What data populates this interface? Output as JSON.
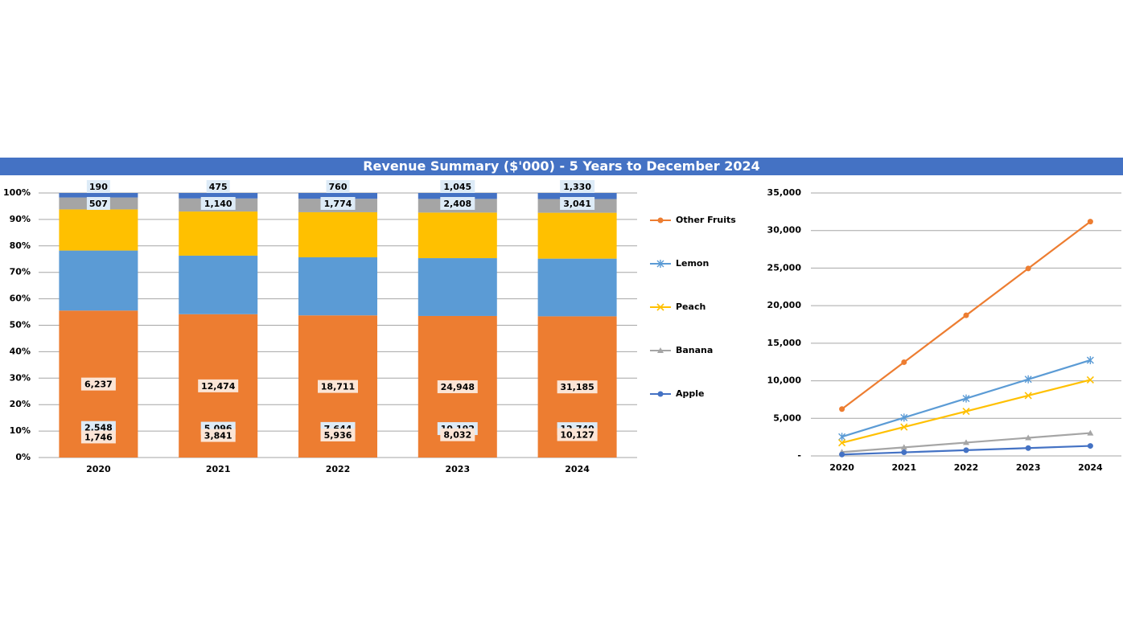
{
  "header": {
    "title": "Revenue Summary ($'000) - 5 Years to December 2024"
  },
  "colors": {
    "banner": "#4472C4",
    "Apple": "#4472C4",
    "Banana": "#A5A5A5",
    "Peach": "#FFC000",
    "Lemon": "#5B9BD5",
    "Other Fruits": "#ED7D31"
  },
  "chart_data": [
    {
      "type": "bar",
      "stacked": "percent",
      "categories": [
        "2020",
        "2021",
        "2022",
        "2023",
        "2024"
      ],
      "series": [
        {
          "name": "Other Fruits",
          "values": [
            6237,
            12474,
            18711,
            24948,
            31185
          ],
          "labels": [
            "6,237",
            "12,474",
            "18,711",
            "24,948",
            "31,185"
          ]
        },
        {
          "name": "Lemon",
          "values": [
            2548,
            5096,
            7644,
            10192,
            12740
          ],
          "labels": [
            "2,548",
            "5,096",
            "7,644",
            "10,192",
            "12,740"
          ]
        },
        {
          "name": "Peach",
          "values": [
            1746,
            3841,
            5936,
            8032,
            10127
          ],
          "labels": [
            "1,746",
            "3,841",
            "5,936",
            "8,032",
            "10,127"
          ]
        },
        {
          "name": "Banana",
          "values": [
            507,
            1140,
            1774,
            2408,
            3041
          ],
          "labels": [
            "507",
            "1,140",
            "1,774",
            "2,408",
            "3,041"
          ]
        },
        {
          "name": "Apple",
          "values": [
            190,
            475,
            760,
            1045,
            1330
          ],
          "labels": [
            "190",
            "475",
            "760",
            "1,045",
            "1,330"
          ]
        }
      ],
      "yticks": [
        "0%",
        "10%",
        "20%",
        "30%",
        "40%",
        "50%",
        "60%",
        "70%",
        "80%",
        "90%",
        "100%"
      ],
      "ylim": [
        0,
        100
      ],
      "grid": true,
      "legend": "right",
      "legend_order": [
        "Other Fruits",
        "Lemon",
        "Peach",
        "Banana",
        "Apple"
      ]
    },
    {
      "type": "line",
      "x": [
        "2020",
        "2021",
        "2022",
        "2023",
        "2024"
      ],
      "series": [
        {
          "name": "Other Fruits",
          "values": [
            6237,
            12474,
            18711,
            24948,
            31185
          ],
          "marker": "circle"
        },
        {
          "name": "Lemon",
          "values": [
            2548,
            5096,
            7644,
            10192,
            12740
          ],
          "marker": "star"
        },
        {
          "name": "Peach",
          "values": [
            1746,
            3841,
            5936,
            8032,
            10127
          ],
          "marker": "x"
        },
        {
          "name": "Banana",
          "values": [
            507,
            1140,
            1774,
            2408,
            3041
          ],
          "marker": "triangle"
        },
        {
          "name": "Apple",
          "values": [
            190,
            475,
            760,
            1045,
            1330
          ],
          "marker": "circle"
        }
      ],
      "yticks": [
        "-",
        "5,000",
        "10,000",
        "15,000",
        "20,000",
        "25,000",
        "30,000",
        "35,000"
      ],
      "ylim": [
        0,
        35000
      ],
      "grid": true
    }
  ]
}
